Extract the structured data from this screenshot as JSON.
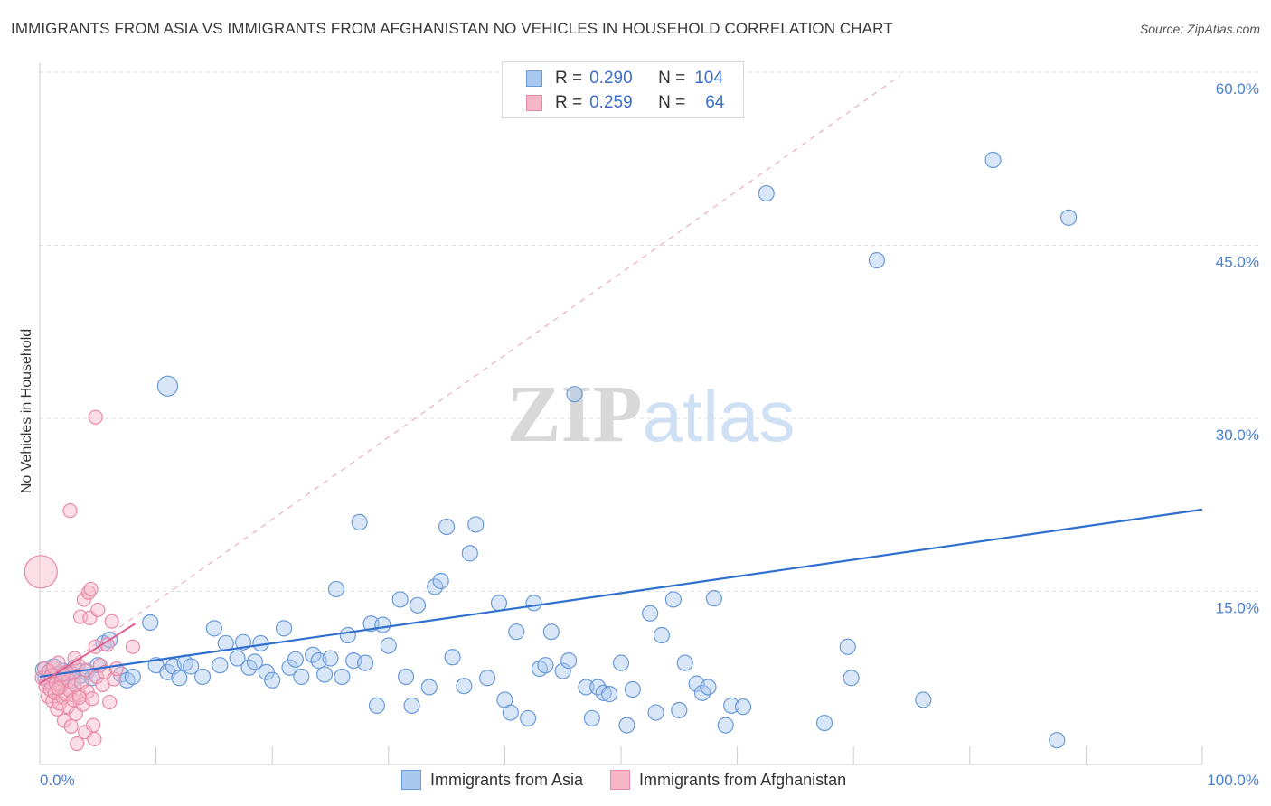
{
  "header": {
    "title": "IMMIGRANTS FROM ASIA VS IMMIGRANTS FROM AFGHANISTAN NO VEHICLES IN HOUSEHOLD CORRELATION CHART",
    "source": "Source: ZipAtlas.com"
  },
  "legend": {
    "asia": {
      "r_label": "R =",
      "r_value": "0.290",
      "n_label": "N =",
      "n_value": "104"
    },
    "afghanistan": {
      "r_label": "R =",
      "r_value": "0.259",
      "n_label": "N =",
      "n_value": "64"
    }
  },
  "bottom_legend": {
    "asia": "Immigrants from Asia",
    "afghanistan": "Immigrants from Afghanistan"
  },
  "colors": {
    "asia_fill": "#a8c8f0",
    "asia_stroke": "#6a9ad8",
    "asia_line": "#2f6fcf",
    "afg_fill": "#f7b6c8",
    "afg_stroke": "#e889a6",
    "afg_line": "#e06090",
    "axis_text": "#4a7fd0"
  },
  "chart_data": {
    "type": "scatter",
    "title": "IMMIGRANTS FROM ASIA VS IMMIGRANTS FROM AFGHANISTAN NO VEHICLES IN HOUSEHOLD CORRELATION CHART",
    "xlabel": "",
    "ylabel": "No Vehicles in Household",
    "xlim": [
      0,
      100
    ],
    "ylim": [
      0,
      60
    ],
    "x_tick_labels": [
      "0.0%",
      "100.0%"
    ],
    "y_ticks": [
      15,
      30,
      45,
      60
    ],
    "y_tick_labels": [
      "15.0%",
      "30.0%",
      "45.0%",
      "60.0%"
    ],
    "grid": true,
    "watermark": "ZIPatlas",
    "series": [
      {
        "name": "Immigrants from Asia",
        "r": 0.29,
        "n": 104,
        "trend": {
          "x": [
            0,
            100
          ],
          "y": [
            7.6,
            22.1
          ]
        },
        "points": [
          [
            0.3,
            8.2,
            1
          ],
          [
            0.5,
            7.5,
            1
          ],
          [
            0.8,
            8.0,
            1
          ],
          [
            1.0,
            7.2,
            1
          ],
          [
            1.2,
            8.5,
            1
          ],
          [
            1.5,
            7.8,
            1
          ],
          [
            1.8,
            7.0,
            1
          ],
          [
            2.0,
            8.1,
            1
          ],
          [
            2.2,
            7.6,
            1
          ],
          [
            2.5,
            7.9,
            1
          ],
          [
            2.8,
            7.3,
            1
          ],
          [
            3.0,
            8.4,
            1
          ],
          [
            3.5,
            7.7,
            1
          ],
          [
            4.0,
            8.0,
            1
          ],
          [
            4.5,
            7.5,
            1
          ],
          [
            5.0,
            8.6,
            1
          ],
          [
            5.5,
            10.5,
            1
          ],
          [
            6.0,
            10.8,
            1
          ],
          [
            7.0,
            7.8,
            1
          ],
          [
            7.5,
            7.3,
            1
          ],
          [
            8.0,
            7.6,
            1
          ],
          [
            9.5,
            12.3,
            1
          ],
          [
            10.0,
            8.6,
            1
          ],
          [
            11.0,
            8.0,
            1
          ],
          [
            11.5,
            8.5,
            1
          ],
          [
            12.0,
            7.5,
            1
          ],
          [
            12.5,
            8.8,
            1
          ],
          [
            13.0,
            8.5,
            1
          ],
          [
            14.0,
            7.6,
            1
          ],
          [
            11.0,
            32.8,
            1.3
          ],
          [
            15.0,
            11.8,
            1
          ],
          [
            15.5,
            8.6,
            1
          ],
          [
            16.0,
            10.5,
            1
          ],
          [
            17.0,
            9.2,
            1
          ],
          [
            17.5,
            10.6,
            1
          ],
          [
            18.0,
            8.4,
            1
          ],
          [
            18.5,
            8.9,
            1
          ],
          [
            19.0,
            10.5,
            1
          ],
          [
            19.5,
            8.0,
            1
          ],
          [
            20.0,
            7.3,
            1
          ],
          [
            21.0,
            11.8,
            1
          ],
          [
            21.5,
            8.4,
            1
          ],
          [
            22.0,
            9.1,
            1
          ],
          [
            22.5,
            7.6,
            1
          ],
          [
            23.5,
            9.5,
            1
          ],
          [
            24.0,
            9.0,
            1
          ],
          [
            24.5,
            7.8,
            1
          ],
          [
            25.0,
            9.2,
            1
          ],
          [
            25.5,
            15.2,
            1
          ],
          [
            26.0,
            7.6,
            1
          ],
          [
            26.5,
            11.2,
            1
          ],
          [
            27.0,
            9.0,
            1
          ],
          [
            27.5,
            21.0,
            1
          ],
          [
            28.0,
            8.8,
            1
          ],
          [
            28.5,
            12.2,
            1
          ],
          [
            29.0,
            5.1,
            1
          ],
          [
            29.5,
            12.1,
            1
          ],
          [
            30.0,
            10.3,
            1
          ],
          [
            31.0,
            14.3,
            1
          ],
          [
            31.5,
            7.6,
            1
          ],
          [
            32.0,
            5.1,
            1
          ],
          [
            32.5,
            13.8,
            1
          ],
          [
            33.5,
            6.7,
            1
          ],
          [
            34.0,
            15.4,
            1
          ],
          [
            34.5,
            15.9,
            1
          ],
          [
            35.0,
            20.6,
            1
          ],
          [
            35.5,
            9.3,
            1
          ],
          [
            36.5,
            6.8,
            1
          ],
          [
            37.0,
            18.3,
            1
          ],
          [
            37.5,
            20.8,
            1
          ],
          [
            38.5,
            7.5,
            1
          ],
          [
            39.5,
            14.0,
            1
          ],
          [
            40.0,
            5.6,
            1
          ],
          [
            40.5,
            4.5,
            1
          ],
          [
            41.0,
            11.5,
            1
          ],
          [
            42.0,
            4.0,
            1
          ],
          [
            42.5,
            14.0,
            1
          ],
          [
            43.0,
            8.3,
            1
          ],
          [
            43.5,
            8.6,
            1
          ],
          [
            44.0,
            11.5,
            1
          ],
          [
            45.0,
            8.1,
            1
          ],
          [
            45.5,
            9.0,
            1
          ],
          [
            46.0,
            32.1,
            1
          ],
          [
            47.0,
            6.7,
            1
          ],
          [
            47.5,
            4.0,
            1
          ],
          [
            48.0,
            6.7,
            1
          ],
          [
            48.5,
            6.2,
            1
          ],
          [
            49.0,
            6.1,
            1
          ],
          [
            50.0,
            8.8,
            1
          ],
          [
            50.5,
            3.4,
            1
          ],
          [
            51.0,
            6.5,
            1
          ],
          [
            52.5,
            13.1,
            1
          ],
          [
            53.0,
            4.5,
            1
          ],
          [
            53.5,
            11.2,
            1
          ],
          [
            54.5,
            14.3,
            1
          ],
          [
            55.0,
            4.7,
            1
          ],
          [
            55.5,
            8.8,
            1
          ],
          [
            56.5,
            7.0,
            1
          ],
          [
            57.0,
            6.2,
            1
          ],
          [
            57.5,
            6.7,
            1
          ],
          [
            58.0,
            14.4,
            1
          ],
          [
            59.0,
            3.4,
            1
          ],
          [
            59.5,
            5.1,
            1
          ],
          [
            60.5,
            5.0,
            1
          ],
          [
            62.5,
            49.5,
            1
          ],
          [
            67.5,
            3.6,
            1
          ],
          [
            69.5,
            10.2,
            1
          ],
          [
            69.8,
            7.5,
            1
          ],
          [
            72.0,
            43.7,
            1
          ],
          [
            76.0,
            5.6,
            1
          ],
          [
            82.0,
            52.4,
            1
          ],
          [
            87.5,
            2.1,
            1
          ],
          [
            88.5,
            47.4,
            1
          ]
        ]
      },
      {
        "name": "Immigrants from Afghanistan",
        "r": 0.259,
        "n": 64,
        "trend": {
          "x": [
            0,
            8.2
          ],
          "y": [
            7.0,
            12.2
          ]
        },
        "dashed_extension": {
          "x": [
            0,
            74
          ],
          "y": [
            7.0,
            59.7
          ]
        },
        "points": [
          [
            0.1,
            16.7,
            2.4
          ],
          [
            0.2,
            7.5,
            1
          ],
          [
            0.4,
            8.3,
            1
          ],
          [
            0.5,
            6.8,
            1
          ],
          [
            0.6,
            7.2,
            1
          ],
          [
            0.7,
            5.9,
            1
          ],
          [
            0.8,
            8.1,
            1
          ],
          [
            0.9,
            6.5,
            1
          ],
          [
            1.0,
            7.7,
            1
          ],
          [
            1.1,
            5.5,
            1
          ],
          [
            1.2,
            8.4,
            1
          ],
          [
            1.3,
            6.2,
            1
          ],
          [
            1.4,
            7.0,
            1
          ],
          [
            1.5,
            4.8,
            1
          ],
          [
            1.6,
            8.8,
            1
          ],
          [
            1.7,
            5.3,
            1
          ],
          [
            1.8,
            6.7,
            1
          ],
          [
            1.9,
            7.4,
            1
          ],
          [
            2.0,
            5.8,
            1
          ],
          [
            2.1,
            3.8,
            1
          ],
          [
            2.2,
            6.1,
            1
          ],
          [
            2.3,
            8.0,
            1
          ],
          [
            2.4,
            5.0,
            1
          ],
          [
            2.5,
            7.3,
            1
          ],
          [
            2.6,
            6.4,
            1
          ],
          [
            2.7,
            3.3,
            1
          ],
          [
            2.8,
            7.9,
            1
          ],
          [
            2.9,
            5.6,
            1
          ],
          [
            3.0,
            6.9,
            1
          ],
          [
            3.1,
            4.4,
            1
          ],
          [
            3.2,
            1.8,
            1
          ],
          [
            3.3,
            8.6,
            1
          ],
          [
            3.4,
            6.0,
            1
          ],
          [
            3.5,
            12.8,
            1
          ],
          [
            3.6,
            7.1,
            1
          ],
          [
            3.7,
            5.2,
            1
          ],
          [
            3.8,
            14.3,
            1
          ],
          [
            3.9,
            2.8,
            1
          ],
          [
            4.0,
            8.2,
            1
          ],
          [
            4.1,
            6.3,
            1
          ],
          [
            4.2,
            14.9,
            1
          ],
          [
            4.3,
            12.7,
            1
          ],
          [
            4.4,
            15.2,
            1
          ],
          [
            4.5,
            5.7,
            1
          ],
          [
            4.6,
            3.4,
            1
          ],
          [
            4.7,
            2.2,
            1
          ],
          [
            4.8,
            10.2,
            1
          ],
          [
            4.9,
            7.6,
            1
          ],
          [
            5.0,
            13.4,
            1
          ],
          [
            5.2,
            8.6,
            1
          ],
          [
            5.4,
            6.9,
            1
          ],
          [
            5.6,
            8.0,
            1
          ],
          [
            5.8,
            10.4,
            1
          ],
          [
            6.0,
            5.4,
            1
          ],
          [
            6.2,
            12.4,
            1
          ],
          [
            6.4,
            7.4,
            1
          ],
          [
            6.6,
            8.3,
            1
          ],
          [
            8.0,
            10.2,
            1
          ],
          [
            3.0,
            9.2,
            1
          ],
          [
            2.6,
            22.0,
            1
          ],
          [
            4.8,
            30.1,
            1
          ],
          [
            1.6,
            6.6,
            1
          ],
          [
            3.4,
            5.8,
            1
          ],
          [
            2.0,
            7.8,
            1
          ]
        ]
      }
    ]
  }
}
